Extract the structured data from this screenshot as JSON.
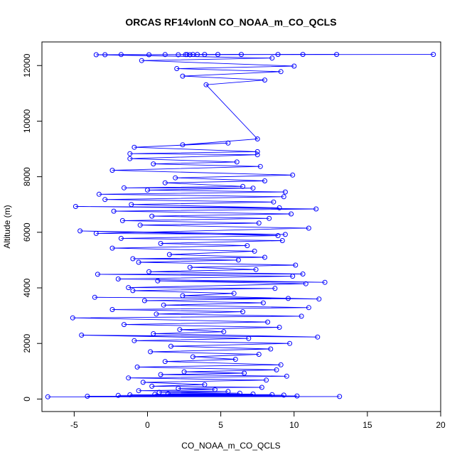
{
  "chart_data": {
    "type": "scatter",
    "title": "ORCAS RF14vlonN CO_NOAA_m_CO_QCLS",
    "xlabel": "CO_NOAA_m_CO_QCLS",
    "ylabel": "Altitude (m)",
    "xlim": [
      -7.2,
      20.0
    ],
    "ylim": [
      -450,
      12850
    ],
    "xticks": [
      -5,
      0,
      5,
      10,
      15,
      20
    ],
    "yticks": [
      0,
      2000,
      4000,
      6000,
      8000,
      10000,
      12000
    ],
    "grid": false,
    "legend": "none",
    "color": "#0000ff",
    "marker": "open-circle",
    "connect_points": true,
    "series": [
      {
        "points": [
          [
            -6.8,
            80
          ],
          [
            13.1,
            90
          ],
          [
            -4.1,
            100
          ],
          [
            10.2,
            110
          ],
          [
            -2.0,
            130
          ],
          [
            9.3,
            140
          ],
          [
            -1.2,
            150
          ],
          [
            8.5,
            160
          ],
          [
            0.5,
            170
          ],
          [
            7.2,
            180
          ],
          [
            1.4,
            190
          ],
          [
            6.3,
            210
          ],
          [
            0.8,
            240
          ],
          [
            5.5,
            270
          ],
          [
            -0.6,
            300
          ],
          [
            4.6,
            340
          ],
          [
            2.1,
            380
          ],
          [
            7.8,
            420
          ],
          [
            0.3,
            460
          ],
          [
            3.9,
            520
          ],
          [
            -0.3,
            600
          ],
          [
            8.1,
            680
          ],
          [
            -1.3,
            760
          ],
          [
            9.5,
            820
          ],
          [
            0.9,
            880
          ],
          [
            6.6,
            930
          ],
          [
            2.5,
            980
          ],
          [
            8.8,
            1050
          ],
          [
            -0.7,
            1150
          ],
          [
            9.1,
            1230
          ],
          [
            1.2,
            1350
          ],
          [
            6.0,
            1430
          ],
          [
            3.1,
            1520
          ],
          [
            7.6,
            1610
          ],
          [
            0.2,
            1700
          ],
          [
            8.4,
            1800
          ],
          [
            1.6,
            1900
          ],
          [
            9.7,
            2000
          ],
          [
            -0.9,
            2100
          ],
          [
            6.9,
            2180
          ],
          [
            -4.5,
            2300
          ],
          [
            11.6,
            2230
          ],
          [
            0.4,
            2350
          ],
          [
            5.2,
            2420
          ],
          [
            2.2,
            2500
          ],
          [
            9.0,
            2580
          ],
          [
            -1.6,
            2680
          ],
          [
            8.2,
            2770
          ],
          [
            -5.1,
            2920
          ],
          [
            10.5,
            2980
          ],
          [
            0.6,
            3060
          ],
          [
            6.5,
            3140
          ],
          [
            -2.4,
            3220
          ],
          [
            11.0,
            3290
          ],
          [
            1.1,
            3380
          ],
          [
            7.9,
            3460
          ],
          [
            -0.2,
            3540
          ],
          [
            9.6,
            3620
          ],
          [
            -3.6,
            3660
          ],
          [
            11.7,
            3600
          ],
          [
            2.4,
            3720
          ],
          [
            5.9,
            3800
          ],
          [
            -1.0,
            3900
          ],
          [
            8.7,
            3980
          ],
          [
            -1.3,
            4010
          ],
          [
            10.8,
            4150
          ],
          [
            0.7,
            4250
          ],
          [
            12.1,
            4200
          ],
          [
            -2.0,
            4320
          ],
          [
            9.9,
            4420
          ],
          [
            -3.4,
            4490
          ],
          [
            10.6,
            4500
          ],
          [
            0.1,
            4580
          ],
          [
            7.4,
            4660
          ],
          [
            2.9,
            4740
          ],
          [
            10.1,
            4820
          ],
          [
            -0.6,
            4920
          ],
          [
            6.2,
            5000
          ],
          [
            -1.0,
            5050
          ],
          [
            8.0,
            5100
          ],
          [
            1.5,
            5200
          ],
          [
            7.3,
            5320
          ],
          [
            -2.4,
            5430
          ],
          [
            6.8,
            5520
          ],
          [
            0.9,
            5600
          ],
          [
            9.2,
            5700
          ],
          [
            -1.8,
            5780
          ],
          [
            8.9,
            5880
          ],
          [
            -4.6,
            6050
          ],
          [
            9.4,
            5920
          ],
          [
            -3.5,
            5960
          ],
          [
            11.0,
            6150
          ],
          [
            -0.5,
            6260
          ],
          [
            7.6,
            6330
          ],
          [
            -1.7,
            6420
          ],
          [
            8.3,
            6500
          ],
          [
            0.3,
            6580
          ],
          [
            9.8,
            6660
          ],
          [
            -2.3,
            6760
          ],
          [
            11.5,
            6840
          ],
          [
            -4.9,
            6930
          ],
          [
            9.0,
            6880
          ],
          [
            -1.1,
            7000
          ],
          [
            8.6,
            7090
          ],
          [
            -2.9,
            7180
          ],
          [
            9.3,
            7280
          ],
          [
            -3.3,
            7370
          ],
          [
            9.4,
            7450
          ],
          [
            0.0,
            7520
          ],
          [
            7.2,
            7590
          ],
          [
            -1.6,
            7600
          ],
          [
            6.5,
            7650
          ],
          [
            1.2,
            7780
          ],
          [
            8.0,
            7850
          ],
          [
            1.9,
            7960
          ],
          [
            9.9,
            8060
          ],
          [
            -2.4,
            8230
          ],
          [
            7.7,
            8370
          ],
          [
            0.4,
            8460
          ],
          [
            6.1,
            8530
          ],
          [
            -1.2,
            8650
          ],
          [
            7.5,
            8790
          ],
          [
            -1.2,
            8830
          ],
          [
            7.5,
            8900
          ],
          [
            -0.9,
            9060
          ],
          [
            5.5,
            9210
          ],
          [
            2.4,
            9150
          ],
          [
            7.5,
            9360
          ],
          [
            4.0,
            11310
          ],
          [
            8.0,
            11480
          ],
          [
            2.4,
            11620
          ],
          [
            9.1,
            11780
          ],
          [
            2.0,
            11890
          ],
          [
            10.0,
            11980
          ],
          [
            -0.4,
            12180
          ],
          [
            8.5,
            12270
          ],
          [
            -3.5,
            12390
          ],
          [
            19.5,
            12400
          ],
          [
            -2.9,
            12390
          ],
          [
            12.9,
            12400
          ],
          [
            -1.8,
            12395
          ],
          [
            10.6,
            12400
          ],
          [
            0.1,
            12390
          ],
          [
            8.9,
            12400
          ],
          [
            1.2,
            12395
          ],
          [
            6.4,
            12400
          ],
          [
            2.1,
            12390
          ],
          [
            4.8,
            12400
          ],
          [
            2.6,
            12395
          ],
          [
            3.9,
            12400
          ],
          [
            2.9,
            12390
          ],
          [
            3.4,
            12400
          ],
          [
            2.7,
            12395
          ],
          [
            3.1,
            12400
          ]
        ]
      }
    ]
  }
}
